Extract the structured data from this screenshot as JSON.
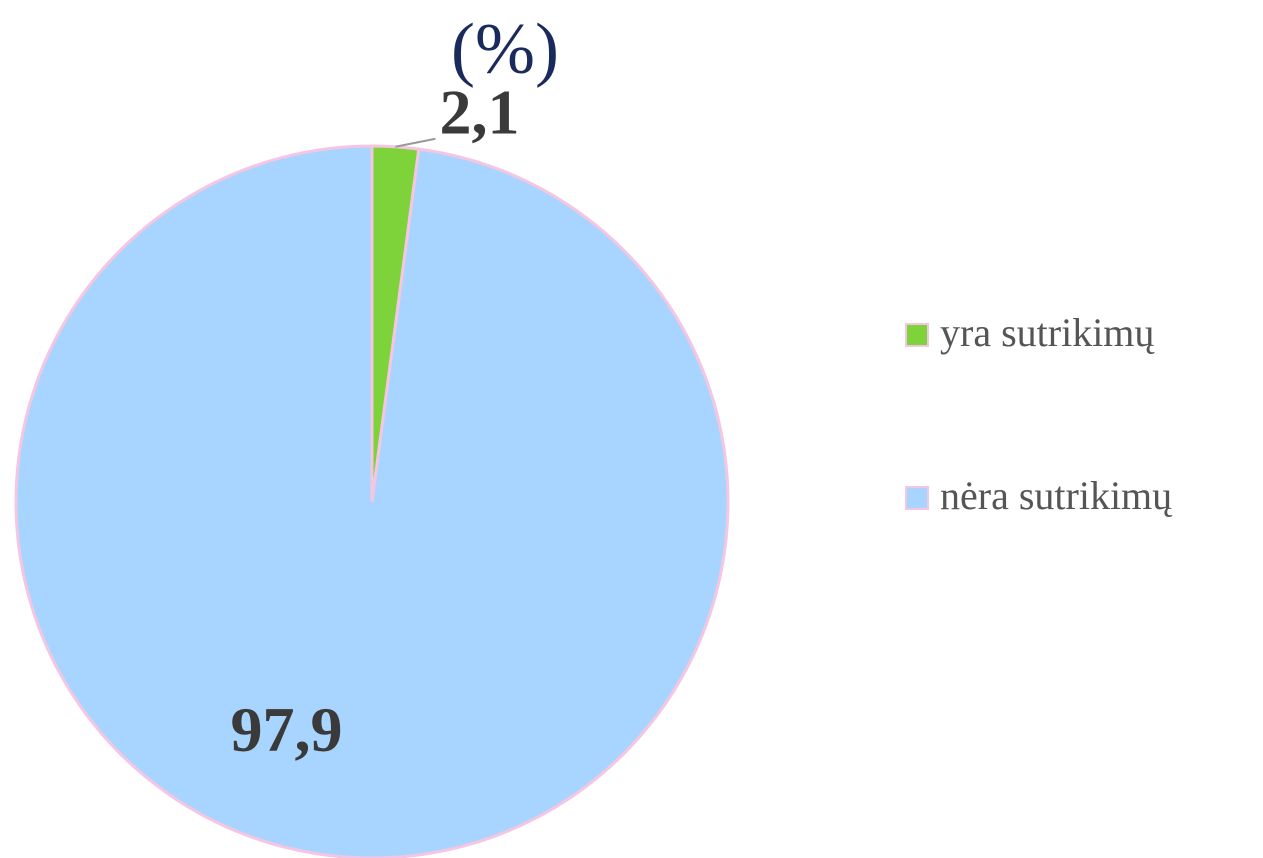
{
  "chart_data": {
    "type": "pie",
    "title": "(%)",
    "categories": [
      "yra sutrikimų",
      "nėra sutrikimų"
    ],
    "values": [
      2.1,
      97.9
    ],
    "value_labels": [
      "2,1",
      "97,9"
    ],
    "colors": [
      "#7ed23a",
      "#a8d5ff"
    ],
    "legend": "right"
  }
}
